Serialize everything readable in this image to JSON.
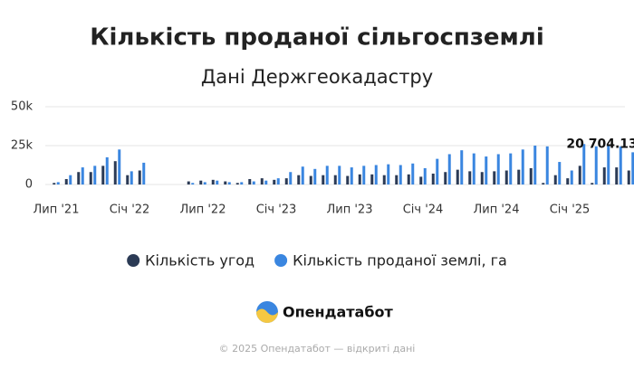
{
  "chart_data": {
    "type": "bar",
    "title": "Кількість проданої сільгоспземлі",
    "subtitle": "Дані Держгеокадастру",
    "categories": [
      "Лип '21",
      null,
      null,
      null,
      null,
      null,
      "Січ '22",
      null,
      null,
      null,
      null,
      null,
      "Лип '22",
      null,
      null,
      null,
      null,
      null,
      "Січ '23",
      null,
      null,
      null,
      null,
      null,
      "Лип '23",
      null,
      null,
      null,
      null,
      null,
      "Січ '24",
      null,
      null,
      null,
      null,
      null,
      "Лип '24",
      null,
      null,
      null,
      null,
      null,
      "Січ '25",
      null,
      null,
      null,
      null,
      null
    ],
    "series": [
      {
        "name": "Кількість угод",
        "color": "#2b3a55",
        "values": [
          1000,
          3500,
          8000,
          8000,
          12000,
          15000,
          6000,
          9000,
          null,
          null,
          null,
          2000,
          2500,
          3000,
          2000,
          1000,
          3500,
          4000,
          3000,
          4000,
          6000,
          5500,
          6000,
          6000,
          5500,
          6500,
          6500,
          6000,
          6000,
          6500,
          5000,
          7000,
          8000,
          9500,
          8500,
          8000,
          8500,
          9000,
          9500,
          10500,
          1000,
          6000,
          4000,
          12000,
          1000,
          11000,
          11000,
          9000
        ]
      },
      {
        "name": "Кількість проданої землі, га",
        "color": "#3a86e0",
        "values": [
          1500,
          6000,
          11000,
          12000,
          17500,
          22500,
          8500,
          14000,
          null,
          null,
          null,
          1000,
          1500,
          2500,
          1500,
          1500,
          2000,
          2500,
          4000,
          8000,
          11500,
          10000,
          12000,
          12000,
          11000,
          12000,
          12500,
          13000,
          12500,
          13500,
          10500,
          16500,
          19500,
          22000,
          20000,
          18000,
          19500,
          20000,
          22500,
          25000,
          24500,
          14500,
          9000,
          26000,
          24500,
          25500,
          24500,
          20704.13
        ],
        "value_labels": [
          null,
          null,
          null,
          null,
          null,
          null,
          null,
          null,
          null,
          null,
          null,
          null,
          null,
          null,
          null,
          null,
          null,
          null,
          null,
          null,
          null,
          null,
          null,
          null,
          null,
          null,
          null,
          null,
          null,
          null,
          null,
          null,
          null,
          null,
          null,
          null,
          null,
          null,
          null,
          null,
          null,
          null,
          null,
          null,
          null,
          null,
          null,
          "20 704.13"
        ]
      }
    ],
    "ylim": [
      0,
      50000
    ],
    "yticks": [
      0,
      {
        "value": 25000,
        "label": "25k"
      },
      {
        "value": 50000,
        "label": "50k"
      }
    ],
    "grid": true,
    "legend": "bottom"
  },
  "brand": "Опендатабот",
  "footer": "© 2025 Опендатабот — відкриті дані"
}
